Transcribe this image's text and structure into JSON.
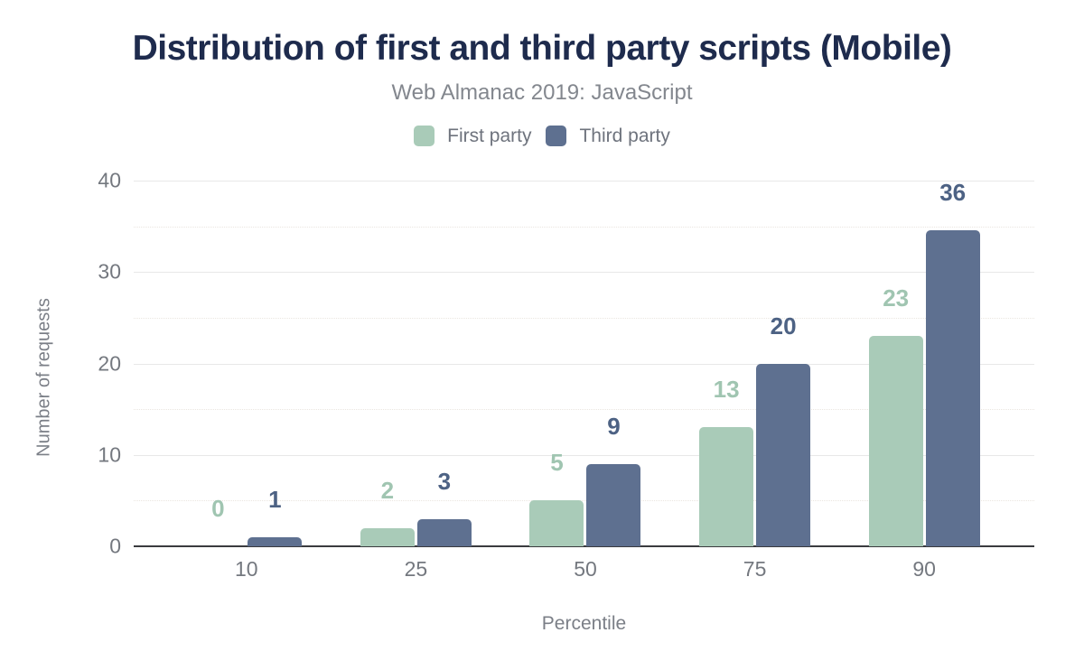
{
  "chart_data": {
    "type": "bar",
    "title": "Distribution of first and third party scripts (Mobile)",
    "subtitle": "Web Almanac 2019: JavaScript",
    "categories": [
      "10",
      "25",
      "50",
      "75",
      "90"
    ],
    "series": [
      {
        "name": "First party",
        "values": [
          0,
          2,
          5,
          13,
          23
        ],
        "color": "#a9cbb8",
        "label_color": "#a0c5b1"
      },
      {
        "name": "Third party",
        "values": [
          1,
          3,
          9,
          20,
          36
        ],
        "color": "#5e7090",
        "label_color": "#4d6284"
      }
    ],
    "xlabel": "Percentile",
    "ylabel": "Number of requests",
    "ylim": [
      0,
      40
    ],
    "yticks": [
      0,
      10,
      20,
      30,
      40
    ],
    "minor_yticks": [
      5,
      15,
      25,
      35
    ],
    "grid": "horizontal-major-and-dotted-minor",
    "legend_position": "top",
    "colors": {
      "title": "#1e2b4d",
      "subtitle": "#83878e",
      "axis_text": "#74787f",
      "axis_line": "#3a3b3f",
      "major_grid": "#e8e8e8"
    }
  }
}
